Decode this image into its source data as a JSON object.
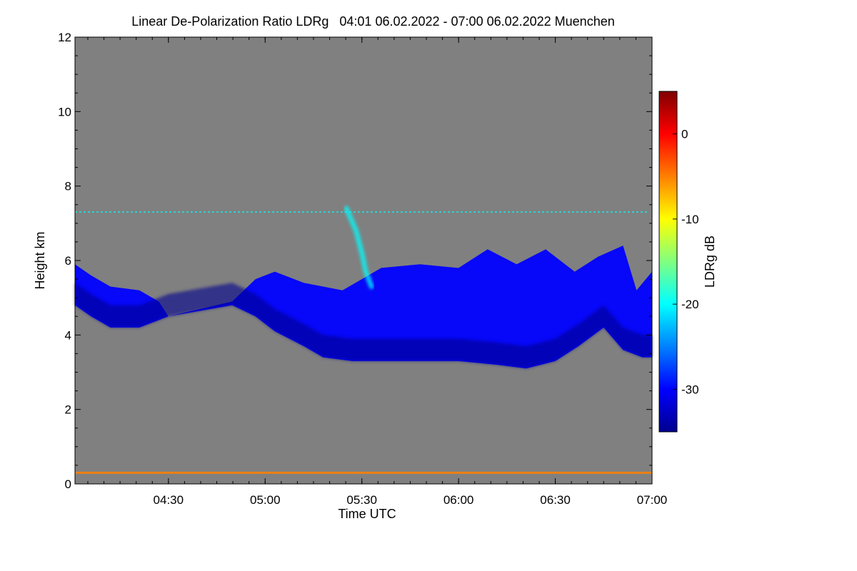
{
  "chart_data": {
    "type": "heatmap",
    "title": "Linear De-Polarization Ratio LDRg   04:01 06.02.2022 - 07:00 06.02.2022 Muenchen",
    "xlabel": "Time UTC",
    "ylabel": "Height km",
    "colorbar_label": "LDRg dB",
    "x_unit": "hours UTC",
    "xlim": [
      4.017,
      7.0
    ],
    "ylim": [
      0,
      12
    ],
    "x_tick_labels": [
      "04:30",
      "05:00",
      "05:30",
      "06:00",
      "06:30",
      "07:00"
    ],
    "x_tick_values": [
      4.5,
      5.0,
      5.5,
      6.0,
      6.5,
      7.0
    ],
    "y_ticks": [
      0,
      2,
      4,
      6,
      8,
      10,
      12
    ],
    "colorbar_range": [
      -35,
      5
    ],
    "colorbar_ticks": [
      0,
      -10,
      -20,
      -30
    ],
    "colormap": [
      "#00008f",
      "#0000ff",
      "#0080ff",
      "#00ffff",
      "#80ff80",
      "#ffff00",
      "#ff8000",
      "#ff0000",
      "#800000"
    ],
    "background_color": "#808080",
    "features": [
      {
        "name": "ice cloud",
        "ldr_db": -31,
        "top_km": [
          [
            4.017,
            5.9
          ],
          [
            4.1,
            5.6
          ],
          [
            4.2,
            5.3
          ],
          [
            4.35,
            5.2
          ],
          [
            4.45,
            4.9
          ],
          [
            4.5,
            4.5
          ],
          [
            4.83,
            4.9
          ],
          [
            4.95,
            5.5
          ],
          [
            5.05,
            5.7
          ],
          [
            5.2,
            5.4
          ],
          [
            5.4,
            5.2
          ],
          [
            5.6,
            5.8
          ],
          [
            5.8,
            5.9
          ],
          [
            6.0,
            5.8
          ],
          [
            6.15,
            6.3
          ],
          [
            6.3,
            5.9
          ],
          [
            6.45,
            6.3
          ],
          [
            6.6,
            5.7
          ],
          [
            6.72,
            6.1
          ],
          [
            6.85,
            6.4
          ],
          [
            6.92,
            5.2
          ],
          [
            7.0,
            5.7
          ]
        ],
        "base_km": [
          [
            4.017,
            4.8
          ],
          [
            4.1,
            4.5
          ],
          [
            4.2,
            4.2
          ],
          [
            4.35,
            4.2
          ],
          [
            4.45,
            4.4
          ],
          [
            4.5,
            4.5
          ],
          [
            4.83,
            4.8
          ],
          [
            4.95,
            4.5
          ],
          [
            5.05,
            4.1
          ],
          [
            5.2,
            3.7
          ],
          [
            5.3,
            3.4
          ],
          [
            5.45,
            3.3
          ],
          [
            5.6,
            3.3
          ],
          [
            5.8,
            3.3
          ],
          [
            6.0,
            3.3
          ],
          [
            6.2,
            3.2
          ],
          [
            6.35,
            3.1
          ],
          [
            6.5,
            3.3
          ],
          [
            6.62,
            3.7
          ],
          [
            6.75,
            4.2
          ],
          [
            6.85,
            3.6
          ],
          [
            6.95,
            3.4
          ],
          [
            7.0,
            3.4
          ]
        ]
      },
      {
        "name": "high depolarization streak",
        "ldr_db": -22,
        "points": [
          [
            5.42,
            7.4
          ],
          [
            5.47,
            6.8
          ],
          [
            5.5,
            6.2
          ],
          [
            5.52,
            5.7
          ],
          [
            5.55,
            5.3
          ]
        ]
      },
      {
        "name": "faint layer",
        "ldr_db": -22,
        "height_km": 7.3,
        "x_range": [
          4.017,
          6.98
        ]
      },
      {
        "name": "near-ground layer",
        "ldr_db": -5,
        "height_km": 0.3,
        "x_range": [
          4.017,
          7.0
        ]
      }
    ]
  }
}
